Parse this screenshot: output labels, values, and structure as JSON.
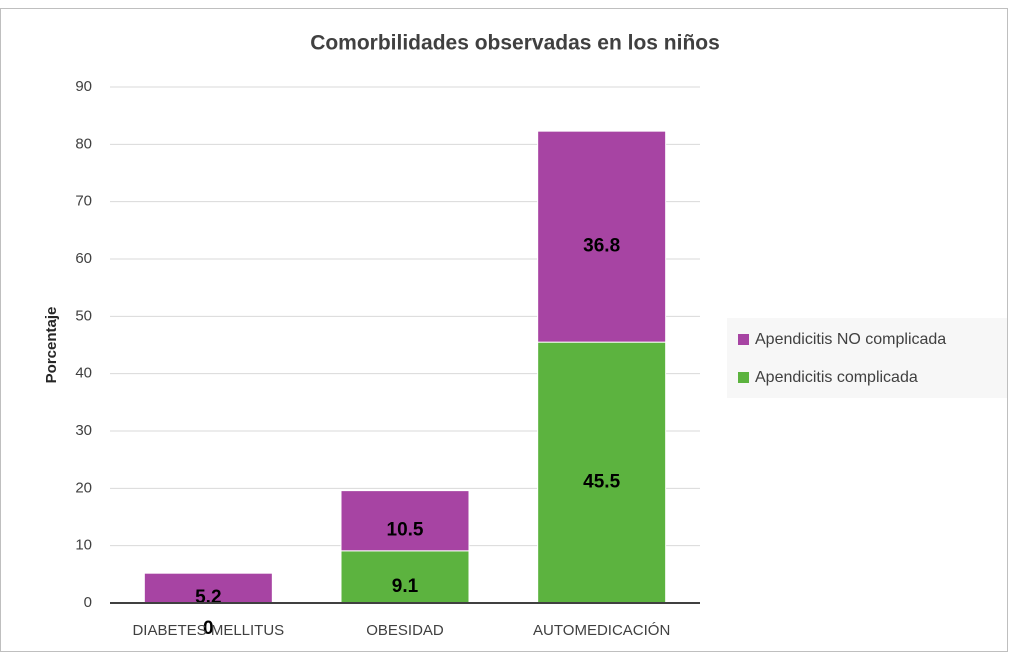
{
  "chart_data": {
    "type": "stacked_bar",
    "title": "Comorbilidades observadas en los niños",
    "y_label": "Porcentaje",
    "categories": [
      "DIABETES MELLITUS",
      "OBESIDAD",
      "AUTOMEDICACIÓN"
    ],
    "series": [
      {
        "name": "Apendicitis complicada",
        "color": "#5cb33f",
        "values": [
          0,
          9.1,
          45.5
        ]
      },
      {
        "name": "Apendicitis NO complicada",
        "color": "#a744a3",
        "values": [
          5.2,
          10.5,
          36.8
        ]
      }
    ],
    "ylim": [
      0,
      90
    ],
    "yticks": [
      0,
      10,
      20,
      30,
      40,
      50,
      60,
      70,
      80,
      90
    ],
    "grid": true,
    "legend": "right"
  }
}
